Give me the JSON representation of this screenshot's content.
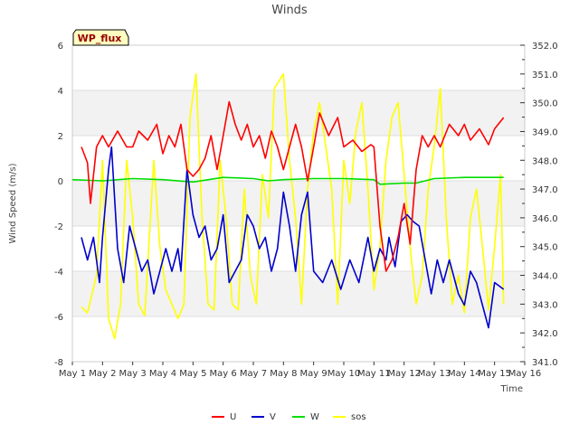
{
  "chart_data": {
    "type": "line",
    "title": "Winds",
    "badge": "WP_flux",
    "xlabel": "Time",
    "ylabel": "Wind Speed (m/s)",
    "x_ticks": [
      "May 1",
      "May 2",
      "May 3",
      "May 4",
      "May 5",
      "May 6",
      "May 7",
      "May 8",
      "May 9",
      "May 10",
      "May 11",
      "May 12",
      "May 13",
      "May 14",
      "May 15",
      "May 16"
    ],
    "xlim": [
      1,
      16
    ],
    "y_left": {
      "ticks": [
        "-8",
        "-6",
        "-4",
        "-2",
        "0",
        "2",
        "4",
        "6"
      ],
      "ylim": [
        -8,
        6
      ]
    },
    "y_right": {
      "ticks": [
        "341.0",
        "342.0",
        "343.0",
        "344.0",
        "345.0",
        "346.0",
        "347.0",
        "348.0",
        "349.0",
        "350.0",
        "351.0",
        "352.0"
      ],
      "ylim": [
        341,
        352
      ]
    },
    "grid": true,
    "legend_position": "bottom",
    "series": [
      {
        "name": "U",
        "color": "#ff0000",
        "axis": "left",
        "x": [
          1.3,
          1.5,
          1.6,
          1.8,
          2.0,
          2.2,
          2.5,
          2.8,
          3.0,
          3.2,
          3.5,
          3.8,
          4.0,
          4.2,
          4.4,
          4.6,
          4.8,
          5.0,
          5.2,
          5.4,
          5.6,
          5.8,
          6.0,
          6.2,
          6.4,
          6.6,
          6.8,
          7.0,
          7.2,
          7.4,
          7.6,
          7.8,
          8.0,
          8.2,
          8.4,
          8.6,
          8.8,
          9.0,
          9.2,
          9.5,
          9.8,
          10.0,
          10.3,
          10.6,
          10.9,
          11.0,
          11.2,
          11.4,
          11.6,
          11.8,
          12.0,
          12.2,
          12.4,
          12.6,
          12.8,
          13.0,
          13.2,
          13.5,
          13.8,
          14.0,
          14.2,
          14.5,
          14.8,
          15.0,
          15.3
        ],
        "values": [
          1.5,
          0.8,
          -1.0,
          1.5,
          2.0,
          1.5,
          2.2,
          1.5,
          1.5,
          2.2,
          1.8,
          2.5,
          1.2,
          2.0,
          1.5,
          2.5,
          0.5,
          0.2,
          0.5,
          1.0,
          2.0,
          0.5,
          2.0,
          3.5,
          2.5,
          1.8,
          2.5,
          1.5,
          2.0,
          1.0,
          2.2,
          1.5,
          0.5,
          1.5,
          2.5,
          1.5,
          0.0,
          1.5,
          3.0,
          2.0,
          2.8,
          1.5,
          1.8,
          1.3,
          1.6,
          1.5,
          -2.0,
          -4.0,
          -3.5,
          -2.5,
          -1.0,
          -2.8,
          0.5,
          2.0,
          1.5,
          2.0,
          1.5,
          2.5,
          2.0,
          2.5,
          1.8,
          2.3,
          1.6,
          2.3,
          2.8
        ]
      },
      {
        "name": "V",
        "color": "#0000cc",
        "axis": "left",
        "x": [
          1.3,
          1.5,
          1.7,
          1.9,
          2.0,
          2.2,
          2.3,
          2.5,
          2.7,
          2.9,
          3.1,
          3.3,
          3.5,
          3.7,
          3.9,
          4.1,
          4.3,
          4.5,
          4.6,
          4.8,
          5.0,
          5.2,
          5.4,
          5.6,
          5.8,
          6.0,
          6.2,
          6.4,
          6.6,
          6.8,
          7.0,
          7.2,
          7.4,
          7.6,
          7.8,
          8.0,
          8.2,
          8.4,
          8.6,
          8.8,
          9.0,
          9.3,
          9.6,
          9.9,
          10.2,
          10.5,
          10.8,
          11.0,
          11.2,
          11.4,
          11.5,
          11.7,
          11.9,
          12.1,
          12.3,
          12.5,
          12.7,
          12.9,
          13.1,
          13.3,
          13.5,
          13.8,
          14.0,
          14.2,
          14.4,
          14.6,
          14.8,
          15.0,
          15.3
        ],
        "values": [
          -2.5,
          -3.5,
          -2.5,
          -4.5,
          -2.5,
          0.5,
          1.5,
          -3.0,
          -4.5,
          -2.0,
          -3.0,
          -4.0,
          -3.5,
          -5.0,
          -4.0,
          -3.0,
          -4.0,
          -3.0,
          -4.0,
          0.5,
          -1.5,
          -2.5,
          -2.0,
          -3.5,
          -3.0,
          -1.5,
          -4.5,
          -4.0,
          -3.5,
          -1.5,
          -2.0,
          -3.0,
          -2.5,
          -4.0,
          -3.0,
          -0.5,
          -2.0,
          -4.0,
          -1.5,
          -0.5,
          -4.0,
          -4.5,
          -3.5,
          -4.8,
          -3.5,
          -4.5,
          -2.5,
          -4.0,
          -3.0,
          -3.5,
          -2.5,
          -3.8,
          -1.8,
          -1.5,
          -1.8,
          -2.0,
          -3.5,
          -5.0,
          -3.5,
          -4.5,
          -3.5,
          -5.0,
          -5.5,
          -4.0,
          -4.5,
          -5.5,
          -6.5,
          -4.5,
          -4.8
        ]
      },
      {
        "name": "W",
        "color": "#00dd00",
        "axis": "left",
        "x": [
          1.0,
          2.0,
          3.0,
          4.0,
          5.0,
          6.0,
          7.0,
          7.5,
          8.0,
          9.0,
          10.0,
          11.0,
          11.2,
          12.0,
          12.4,
          13.0,
          14.0,
          15.0,
          15.3
        ],
        "values": [
          0.05,
          0.0,
          0.1,
          0.05,
          -0.05,
          0.15,
          0.1,
          0.0,
          0.05,
          0.1,
          0.1,
          0.05,
          -0.15,
          -0.1,
          -0.1,
          0.1,
          0.15,
          0.15,
          0.15
        ]
      },
      {
        "name": "sos",
        "color": "#ffff00",
        "axis": "right",
        "x": [
          1.3,
          1.5,
          1.8,
          2.0,
          2.2,
          2.4,
          2.6,
          2.8,
          3.0,
          3.2,
          3.4,
          3.7,
          3.9,
          4.1,
          4.3,
          4.5,
          4.7,
          4.9,
          5.1,
          5.3,
          5.5,
          5.7,
          5.9,
          6.1,
          6.3,
          6.5,
          6.7,
          6.9,
          7.1,
          7.3,
          7.5,
          7.7,
          8.0,
          8.2,
          8.4,
          8.6,
          8.8,
          9.0,
          9.2,
          9.4,
          9.6,
          9.8,
          10.0,
          10.2,
          10.4,
          10.6,
          10.8,
          11.0,
          11.2,
          11.4,
          11.6,
          11.8,
          12.0,
          12.2,
          12.4,
          12.6,
          12.8,
          13.0,
          13.2,
          13.4,
          13.6,
          13.8,
          14.0,
          14.2,
          14.4,
          14.6,
          14.8,
          15.0,
          15.2,
          15.3
        ],
        "values": [
          342.9,
          342.7,
          344.0,
          348.0,
          342.5,
          341.8,
          343.0,
          348.0,
          346.0,
          343.0,
          342.6,
          348.0,
          345.0,
          343.5,
          343.0,
          342.5,
          343.0,
          349.5,
          351.0,
          346.0,
          343.0,
          342.8,
          348.0,
          346.0,
          343.0,
          342.8,
          347.0,
          344.0,
          343.0,
          347.5,
          346.0,
          350.5,
          351.0,
          348.0,
          346.0,
          343.0,
          347.0,
          349.0,
          350.0,
          348.5,
          347.0,
          343.0,
          348.0,
          346.5,
          349.0,
          350.0,
          347.0,
          343.5,
          345.0,
          348.0,
          349.5,
          350.0,
          347.5,
          345.0,
          343.0,
          344.0,
          347.0,
          348.5,
          350.5,
          346.0,
          343.0,
          344.0,
          342.7,
          346.0,
          347.0,
          345.0,
          342.8,
          345.0,
          347.5,
          343.0
        ]
      }
    ]
  }
}
